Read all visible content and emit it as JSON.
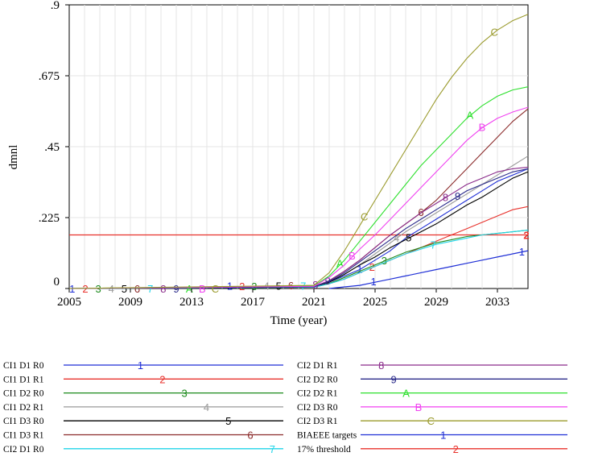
{
  "chart_data": {
    "type": "line",
    "ylabel": "dmnl",
    "xlabel": "Time (year)",
    "xlim": [
      2005,
      2035
    ],
    "ylim": [
      0,
      0.9
    ],
    "x_ticks": [
      "2005",
      "2009",
      "2013",
      "2017",
      "2021",
      "2025",
      "2029",
      "2033"
    ],
    "y_ticks": [
      {
        "value": 0,
        "label": "0"
      },
      {
        "value": 0.225,
        "label": ".225"
      },
      {
        "value": 0.45,
        "label": ".45"
      },
      {
        "value": 0.675,
        "label": ".675"
      },
      {
        "value": 0.9,
        "label": ".9"
      }
    ],
    "x": [
      2005,
      2021,
      2022,
      2023,
      2024,
      2025,
      2026,
      2027,
      2028,
      2029,
      2030,
      2031,
      2032,
      2033,
      2034,
      2035
    ],
    "series": [
      {
        "name": "CI1 D1 R0",
        "marker": "1",
        "color": "#1f2fd6",
        "values": [
          0,
          0.005,
          0.02,
          0.04,
          0.06,
          0.09,
          0.12,
          0.16,
          0.19,
          0.22,
          0.25,
          0.28,
          0.31,
          0.34,
          0.36,
          0.38
        ]
      },
      {
        "name": "CI1 D1 R1",
        "marker": "2",
        "color": "#e8322c",
        "values": [
          0,
          0.004,
          0.015,
          0.03,
          0.05,
          0.07,
          0.09,
          0.11,
          0.13,
          0.15,
          0.17,
          0.19,
          0.21,
          0.23,
          0.25,
          0.26
        ]
      },
      {
        "name": "CI1 D2 R0",
        "marker": "3",
        "color": "#1c8a1c",
        "values": [
          0,
          0.004,
          0.016,
          0.035,
          0.055,
          0.075,
          0.095,
          0.115,
          0.13,
          0.145,
          0.155,
          0.165,
          0.17,
          0.175,
          0.18,
          0.185
        ]
      },
      {
        "name": "CI1 D2 R1",
        "marker": "4",
        "color": "#9a9a9a",
        "values": [
          0,
          0.005,
          0.02,
          0.045,
          0.075,
          0.11,
          0.145,
          0.18,
          0.21,
          0.24,
          0.27,
          0.3,
          0.33,
          0.36,
          0.39,
          0.42
        ]
      },
      {
        "name": "CI1 D3 R0",
        "marker": "5",
        "color": "#000000",
        "values": [
          0,
          0.005,
          0.02,
          0.045,
          0.075,
          0.1,
          0.13,
          0.155,
          0.18,
          0.205,
          0.235,
          0.265,
          0.29,
          0.32,
          0.35,
          0.37
        ]
      },
      {
        "name": "CI1 D3 R1",
        "marker": "6",
        "color": "#8b2a2a",
        "values": [
          0,
          0.006,
          0.025,
          0.055,
          0.09,
          0.13,
          0.17,
          0.205,
          0.24,
          0.28,
          0.33,
          0.38,
          0.43,
          0.48,
          0.53,
          0.57
        ]
      },
      {
        "name": "CI2 D1 R0",
        "marker": "7",
        "color": "#21d5e8",
        "values": [
          0,
          0.004,
          0.015,
          0.03,
          0.05,
          0.07,
          0.09,
          0.11,
          0.125,
          0.14,
          0.15,
          0.16,
          0.17,
          0.175,
          0.18,
          0.185
        ]
      },
      {
        "name": "CI2 D1 R1",
        "marker": "8",
        "color": "#8a2a8a",
        "values": [
          0,
          0.006,
          0.025,
          0.055,
          0.09,
          0.13,
          0.17,
          0.205,
          0.24,
          0.27,
          0.3,
          0.33,
          0.35,
          0.37,
          0.38,
          0.385
        ]
      },
      {
        "name": "CI2 D2 R0",
        "marker": "9",
        "color": "#2a2a8a",
        "values": [
          0,
          0.005,
          0.022,
          0.05,
          0.085,
          0.12,
          0.155,
          0.19,
          0.22,
          0.25,
          0.28,
          0.31,
          0.33,
          0.35,
          0.37,
          0.38
        ]
      },
      {
        "name": "CI2 D2 R1",
        "marker": "A",
        "color": "#2ee02e",
        "values": [
          0,
          0.008,
          0.04,
          0.09,
          0.15,
          0.21,
          0.27,
          0.33,
          0.39,
          0.44,
          0.49,
          0.54,
          0.58,
          0.61,
          0.63,
          0.64
        ]
      },
      {
        "name": "CI2 D3 R0",
        "marker": "B",
        "color": "#f040f0",
        "values": [
          0,
          0.007,
          0.035,
          0.075,
          0.125,
          0.17,
          0.22,
          0.27,
          0.32,
          0.37,
          0.42,
          0.47,
          0.51,
          0.54,
          0.56,
          0.575
        ]
      },
      {
        "name": "CI2 D3 R1",
        "marker": "C",
        "color": "#9b9b2e",
        "values": [
          0,
          0.01,
          0.05,
          0.12,
          0.2,
          0.28,
          0.36,
          0.44,
          0.52,
          0.6,
          0.67,
          0.73,
          0.78,
          0.82,
          0.85,
          0.87
        ]
      }
    ],
    "targets": {
      "name": "BIAEEE targets",
      "marker": "1",
      "color": "#1f2fd6",
      "x": [
        2022,
        2023,
        2024,
        2025,
        2026,
        2027,
        2028,
        2029,
        2030,
        2031,
        2032,
        2033,
        2034,
        2035
      ],
      "values": [
        0.0,
        0.005,
        0.01,
        0.02,
        0.03,
        0.04,
        0.05,
        0.06,
        0.07,
        0.08,
        0.09,
        0.1,
        0.11,
        0.12
      ]
    },
    "threshold": {
      "name": "17% threshold",
      "marker": "2",
      "color": "#e8322c",
      "value": 0.17
    }
  }
}
